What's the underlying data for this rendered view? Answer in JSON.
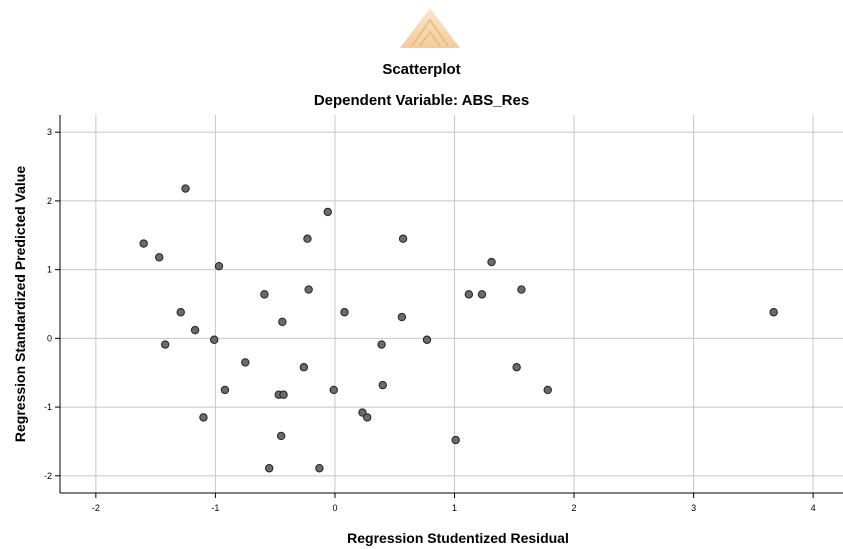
{
  "chart_data": {
    "type": "scatter",
    "title": "Scatterplot",
    "subtitle": "Dependent Variable: ABS_Res",
    "xlabel": "Regression Studentized Residual",
    "ylabel": "Regression Standardized Predicted Value",
    "xlim": [
      -2.3,
      4.25
    ],
    "ylim": [
      -2.25,
      3.25
    ],
    "xticks": [
      -2,
      -1,
      0,
      1,
      2,
      3,
      4
    ],
    "yticks": [
      -2,
      -1,
      0,
      1,
      2,
      3
    ],
    "grid": true,
    "marker_color": "#6b6b6b",
    "points": [
      {
        "x": -1.25,
        "y": 2.18
      },
      {
        "x": -1.6,
        "y": 1.38
      },
      {
        "x": -1.47,
        "y": 1.18
      },
      {
        "x": -0.97,
        "y": 1.05
      },
      {
        "x": -0.06,
        "y": 1.84
      },
      {
        "x": -0.23,
        "y": 1.45
      },
      {
        "x": 0.57,
        "y": 1.45
      },
      {
        "x": 1.31,
        "y": 1.11
      },
      {
        "x": -0.59,
        "y": 0.64
      },
      {
        "x": -0.22,
        "y": 0.71
      },
      {
        "x": 1.12,
        "y": 0.64
      },
      {
        "x": 1.23,
        "y": 0.64
      },
      {
        "x": 1.56,
        "y": 0.71
      },
      {
        "x": 3.67,
        "y": 0.38
      },
      {
        "x": -1.29,
        "y": 0.38
      },
      {
        "x": -0.44,
        "y": 0.24
      },
      {
        "x": 0.08,
        "y": 0.38
      },
      {
        "x": 0.56,
        "y": 0.31
      },
      {
        "x": -1.17,
        "y": 0.12
      },
      {
        "x": -1.42,
        "y": -0.09
      },
      {
        "x": -1.01,
        "y": -0.02
      },
      {
        "x": 0.39,
        "y": -0.09
      },
      {
        "x": 0.77,
        "y": -0.02
      },
      {
        "x": -0.75,
        "y": -0.35
      },
      {
        "x": -0.26,
        "y": -0.42
      },
      {
        "x": 1.52,
        "y": -0.42
      },
      {
        "x": -0.92,
        "y": -0.75
      },
      {
        "x": -0.01,
        "y": -0.75
      },
      {
        "x": 0.4,
        "y": -0.68
      },
      {
        "x": 1.78,
        "y": -0.75
      },
      {
        "x": -0.47,
        "y": -0.82
      },
      {
        "x": -0.43,
        "y": -0.82
      },
      {
        "x": -1.1,
        "y": -1.15
      },
      {
        "x": 0.23,
        "y": -1.08
      },
      {
        "x": 0.27,
        "y": -1.15
      },
      {
        "x": -0.45,
        "y": -1.42
      },
      {
        "x": 1.01,
        "y": -1.48
      },
      {
        "x": -0.55,
        "y": -1.89
      },
      {
        "x": -0.13,
        "y": -1.89
      }
    ]
  }
}
